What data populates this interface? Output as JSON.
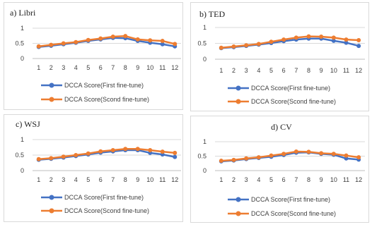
{
  "colors": {
    "first": "#4472C4",
    "second": "#ED7D31",
    "grid": "#d9d9d9",
    "axis": "#bfbfbf"
  },
  "chart_data": [
    {
      "type": "line",
      "title": "a) Libri",
      "categories": [
        "1",
        "2",
        "3",
        "4",
        "5",
        "6",
        "7",
        "8",
        "9",
        "10",
        "11",
        "12"
      ],
      "yticks": [
        "0",
        "0.5",
        "1"
      ],
      "ylim": [
        0,
        1
      ],
      "legend_placement": "bottom",
      "grid": true,
      "series": [
        {
          "name": "DCCA Score(First fine-tune)",
          "values": [
            0.38,
            0.42,
            0.47,
            0.52,
            0.58,
            0.63,
            0.68,
            0.67,
            0.58,
            0.52,
            0.47,
            0.4
          ]
        },
        {
          "name": "DCCA Score(Scond fine-tune)",
          "values": [
            0.4,
            0.45,
            0.5,
            0.54,
            0.61,
            0.66,
            0.72,
            0.74,
            0.63,
            0.6,
            0.58,
            0.48
          ]
        }
      ]
    },
    {
      "type": "line",
      "title": "b) TED",
      "categories": [
        "1",
        "2",
        "3",
        "4",
        "5",
        "6",
        "7",
        "8",
        "9",
        "10",
        "11",
        "12"
      ],
      "yticks": [
        "0",
        "0.5",
        "1"
      ],
      "ylim": [
        0,
        1
      ],
      "legend_placement": "bottom",
      "grid": true,
      "series": [
        {
          "name": "DCCA Score(First fine-tune)",
          "values": [
            0.35,
            0.38,
            0.42,
            0.46,
            0.51,
            0.57,
            0.62,
            0.65,
            0.65,
            0.58,
            0.52,
            0.42
          ]
        },
        {
          "name": "DCCA Score(Scond fine-tune)",
          "values": [
            0.36,
            0.4,
            0.44,
            0.48,
            0.55,
            0.62,
            0.68,
            0.72,
            0.71,
            0.68,
            0.62,
            0.6
          ]
        }
      ]
    },
    {
      "type": "line",
      "title": "c) WSJ",
      "categories": [
        "1",
        "2",
        "3",
        "4",
        "5",
        "6",
        "7",
        "8",
        "9",
        "10",
        "11",
        "12"
      ],
      "yticks": [
        "0",
        "0.5",
        "1"
      ],
      "ylim": [
        0,
        1
      ],
      "legend_placement": "bottom",
      "grid": true,
      "series": [
        {
          "name": "DCCA Score(First fine-tune)",
          "values": [
            0.35,
            0.38,
            0.42,
            0.47,
            0.52,
            0.58,
            0.62,
            0.66,
            0.66,
            0.57,
            0.52,
            0.44
          ]
        },
        {
          "name": "DCCA Score(Scond fine-tune)",
          "values": [
            0.37,
            0.4,
            0.45,
            0.5,
            0.55,
            0.62,
            0.66,
            0.7,
            0.7,
            0.66,
            0.61,
            0.57
          ]
        }
      ]
    },
    {
      "type": "line",
      "title": "d) CV",
      "categories": [
        "1",
        "2",
        "3",
        "4",
        "5",
        "6",
        "7",
        "8",
        "9",
        "10",
        "11",
        "12"
      ],
      "yticks": [
        "0",
        "0.5",
        "1"
      ],
      "ylim": [
        0,
        1
      ],
      "legend_placement": "bottom",
      "grid": true,
      "series": [
        {
          "name": "DCCA Score(First fine-tune)",
          "values": [
            0.32,
            0.35,
            0.4,
            0.44,
            0.48,
            0.54,
            0.62,
            0.63,
            0.58,
            0.55,
            0.42,
            0.38
          ]
        },
        {
          "name": "DCCA Score(Scond fine-tune)",
          "values": [
            0.34,
            0.37,
            0.42,
            0.46,
            0.52,
            0.58,
            0.66,
            0.65,
            0.6,
            0.58,
            0.52,
            0.46
          ]
        }
      ]
    }
  ]
}
